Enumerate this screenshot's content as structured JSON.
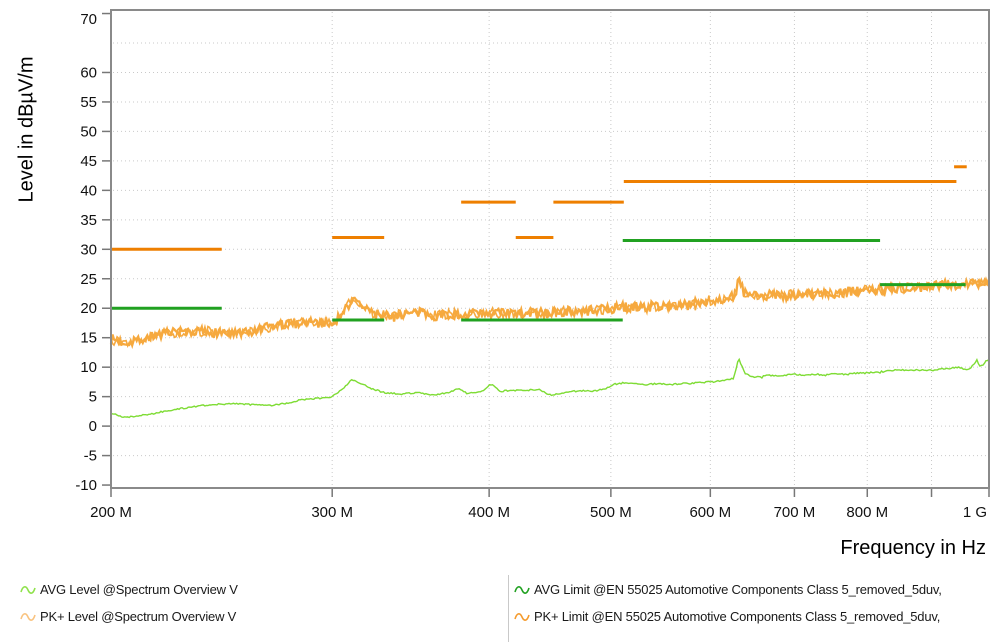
{
  "chart_data": {
    "type": "line",
    "title": "",
    "xlabel": "Frequency in Hz",
    "ylabel": "Level in dBµV/m",
    "x_scale": "log",
    "x_unit": "Hz",
    "x_range_mhz": [
      200,
      1000
    ],
    "y_range": [
      -10.5,
      70.6
    ],
    "grid": true,
    "y_ticks": [
      70,
      60,
      55,
      50,
      45,
      40,
      35,
      30,
      25,
      20,
      15,
      10,
      5,
      0,
      -5,
      -10
    ],
    "x_ticks": [
      {
        "mhz": 200,
        "label": "200 M"
      },
      {
        "mhz": 300,
        "label": "300 M"
      },
      {
        "mhz": 400,
        "label": "400 M"
      },
      {
        "mhz": 500,
        "label": "500 M"
      },
      {
        "mhz": 600,
        "label": "600 M"
      },
      {
        "mhz": 700,
        "label": "700 M"
      },
      {
        "mhz": 800,
        "label": "800 M"
      },
      {
        "mhz": 900,
        "label": ""
      },
      {
        "mhz": 1000,
        "label": "1 G"
      }
    ],
    "grid_levels": [
      65,
      60,
      55,
      50,
      45,
      40,
      35,
      30,
      25,
      20,
      15,
      10,
      5,
      0,
      -5
    ],
    "grid_freqs_mhz": [
      300,
      400,
      500,
      600,
      700,
      800,
      900
    ],
    "colors": {
      "avg_trace": "#7EDC34",
      "pk_trace": "#F6A93E",
      "avg_limit": "#21A121",
      "pk_limit": "#EE7F00",
      "grid": "#c9c9c9",
      "axis": "#8a8a8a",
      "tick": "#777777"
    },
    "series": [
      {
        "name": "AVG Level @Spectrum Overview V",
        "color": "#7EDC34",
        "width": 1.4,
        "noise_db": 0.13,
        "points": [
          [
            200,
            2.2
          ],
          [
            205,
            1.5
          ],
          [
            210,
            1.7
          ],
          [
            218,
            2.3
          ],
          [
            226,
            2.9
          ],
          [
            234,
            3.4
          ],
          [
            242,
            3.7
          ],
          [
            252,
            3.8
          ],
          [
            260,
            3.6
          ],
          [
            268,
            3.5
          ],
          [
            276,
            3.9
          ],
          [
            284,
            4.5
          ],
          [
            292,
            4.7
          ],
          [
            300,
            5.0
          ],
          [
            306,
            6.4
          ],
          [
            311,
            7.9
          ],
          [
            316,
            7.3
          ],
          [
            322,
            6.4
          ],
          [
            330,
            5.7
          ],
          [
            340,
            5.4
          ],
          [
            350,
            5.7
          ],
          [
            360,
            5.3
          ],
          [
            370,
            5.6
          ],
          [
            378,
            6.3
          ],
          [
            384,
            5.6
          ],
          [
            394,
            5.8
          ],
          [
            402,
            7.2
          ],
          [
            408,
            5.9
          ],
          [
            418,
            6.1
          ],
          [
            428,
            6.0
          ],
          [
            438,
            6.3
          ],
          [
            446,
            5.3
          ],
          [
            455,
            5.4
          ],
          [
            462,
            5.8
          ],
          [
            472,
            6.0
          ],
          [
            485,
            6.0
          ],
          [
            495,
            6.3
          ],
          [
            505,
            7.2
          ],
          [
            515,
            7.4
          ],
          [
            530,
            7.0
          ],
          [
            545,
            7.2
          ],
          [
            560,
            7.1
          ],
          [
            580,
            7.3
          ],
          [
            600,
            7.5
          ],
          [
            615,
            7.7
          ],
          [
            626,
            8.1
          ],
          [
            630,
            10.3
          ],
          [
            632,
            11.4
          ],
          [
            635,
            10.5
          ],
          [
            639,
            9.0
          ],
          [
            646,
            8.4
          ],
          [
            655,
            8.3
          ],
          [
            668,
            8.6
          ],
          [
            680,
            8.5
          ],
          [
            700,
            8.8
          ],
          [
            715,
            8.6
          ],
          [
            730,
            8.8
          ],
          [
            740,
            8.6
          ],
          [
            755,
            8.9
          ],
          [
            770,
            8.8
          ],
          [
            785,
            9.0
          ],
          [
            800,
            9.0
          ],
          [
            815,
            9.2
          ],
          [
            830,
            9.3
          ],
          [
            845,
            9.6
          ],
          [
            860,
            9.4
          ],
          [
            875,
            9.5
          ],
          [
            890,
            9.6
          ],
          [
            900,
            9.4
          ],
          [
            915,
            9.7
          ],
          [
            930,
            9.8
          ],
          [
            945,
            10.0
          ],
          [
            955,
            9.7
          ],
          [
            965,
            9.6
          ],
          [
            972,
            10.4
          ],
          [
            978,
            11.2
          ],
          [
            982,
            10.2
          ],
          [
            987,
            10.2
          ],
          [
            993,
            10.9
          ],
          [
            1000,
            11.3
          ]
        ]
      },
      {
        "name": "PK+ Level @Spectrum Overview V",
        "color": "#F6A93E",
        "width": 2.3,
        "noise_db": 0.85,
        "points": [
          [
            200,
            14.8
          ],
          [
            205,
            14.2
          ],
          [
            210,
            14.6
          ],
          [
            216,
            15.3
          ],
          [
            222,
            15.7
          ],
          [
            230,
            16.0
          ],
          [
            238,
            16.1
          ],
          [
            246,
            15.8
          ],
          [
            254,
            15.6
          ],
          [
            262,
            16.2
          ],
          [
            270,
            17.1
          ],
          [
            278,
            17.3
          ],
          [
            286,
            17.8
          ],
          [
            293,
            17.5
          ],
          [
            300,
            17.7
          ],
          [
            305,
            18.6
          ],
          [
            308,
            20.2
          ],
          [
            311,
            21.3
          ],
          [
            315,
            20.9
          ],
          [
            319,
            19.8
          ],
          [
            325,
            19.0
          ],
          [
            332,
            18.8
          ],
          [
            342,
            19.0
          ],
          [
            352,
            19.2
          ],
          [
            362,
            18.8
          ],
          [
            372,
            19.0
          ],
          [
            382,
            18.9
          ],
          [
            392,
            19.1
          ],
          [
            402,
            19.2
          ],
          [
            412,
            19.1
          ],
          [
            422,
            19.0
          ],
          [
            432,
            19.3
          ],
          [
            442,
            19.1
          ],
          [
            452,
            19.3
          ],
          [
            462,
            19.5
          ],
          [
            472,
            19.3
          ],
          [
            482,
            19.6
          ],
          [
            492,
            19.7
          ],
          [
            502,
            20.0
          ],
          [
            512,
            20.2
          ],
          [
            524,
            20.2
          ],
          [
            536,
            20.3
          ],
          [
            548,
            20.4
          ],
          [
            560,
            20.5
          ],
          [
            572,
            20.4
          ],
          [
            584,
            20.9
          ],
          [
            596,
            21.3
          ],
          [
            608,
            21.4
          ],
          [
            618,
            21.7
          ],
          [
            626,
            22.1
          ],
          [
            630,
            23.7
          ],
          [
            632,
            24.4
          ],
          [
            635,
            23.8
          ],
          [
            639,
            22.4
          ],
          [
            648,
            22.0
          ],
          [
            660,
            22.1
          ],
          [
            675,
            22.2
          ],
          [
            690,
            22.3
          ],
          [
            705,
            22.2
          ],
          [
            720,
            22.4
          ],
          [
            735,
            22.5
          ],
          [
            750,
            22.5
          ],
          [
            765,
            22.6
          ],
          [
            780,
            22.9
          ],
          [
            795,
            23.0
          ],
          [
            810,
            23.1
          ],
          [
            825,
            23.2
          ],
          [
            840,
            23.3
          ],
          [
            855,
            23.4
          ],
          [
            870,
            23.5
          ],
          [
            885,
            23.6
          ],
          [
            900,
            23.8
          ],
          [
            915,
            23.9
          ],
          [
            930,
            24.0
          ],
          [
            945,
            24.1
          ],
          [
            960,
            24.2
          ],
          [
            975,
            24.1
          ],
          [
            985,
            24.4
          ],
          [
            993,
            24.6
          ],
          [
            1000,
            24.9
          ]
        ]
      }
    ],
    "limits": [
      {
        "name": "AVG Limit @EN 55025 Automotive Components Class 5_removed_5duv,",
        "color": "#21A121",
        "width": 3,
        "segments": [
          [
            200,
            245,
            20
          ],
          [
            300,
            330,
            18
          ],
          [
            380,
            511,
            18
          ],
          [
            511,
            819,
            31.5
          ],
          [
            819,
            958,
            24
          ]
        ]
      },
      {
        "name": "PK+ Limit @EN 55025 Automotive Components Class 5_removed_5duv,",
        "color": "#EE7F00",
        "width": 3,
        "segments": [
          [
            200,
            245,
            30
          ],
          [
            300,
            330,
            32
          ],
          [
            380,
            420,
            38
          ],
          [
            420,
            450,
            32
          ],
          [
            450,
            512,
            38
          ],
          [
            512,
            942,
            41.5
          ],
          [
            938,
            960,
            44
          ]
        ]
      }
    ]
  },
  "legend": {
    "left": [
      {
        "label": "AVG Level @Spectrum Overview V",
        "icon_color": "#8FE24C"
      },
      {
        "label": "PK+ Level @Spectrum Overview V",
        "icon_color": "#F9C380"
      }
    ],
    "right": [
      {
        "label": "AVG Limit @EN 55025 Automotive Components Class 5_removed_5duv,",
        "icon_color": "#21A121"
      },
      {
        "label": "PK+ Limit @EN 55025 Automotive Components Class 5_removed_5duv,",
        "icon_color": "#F59B2D"
      }
    ]
  }
}
